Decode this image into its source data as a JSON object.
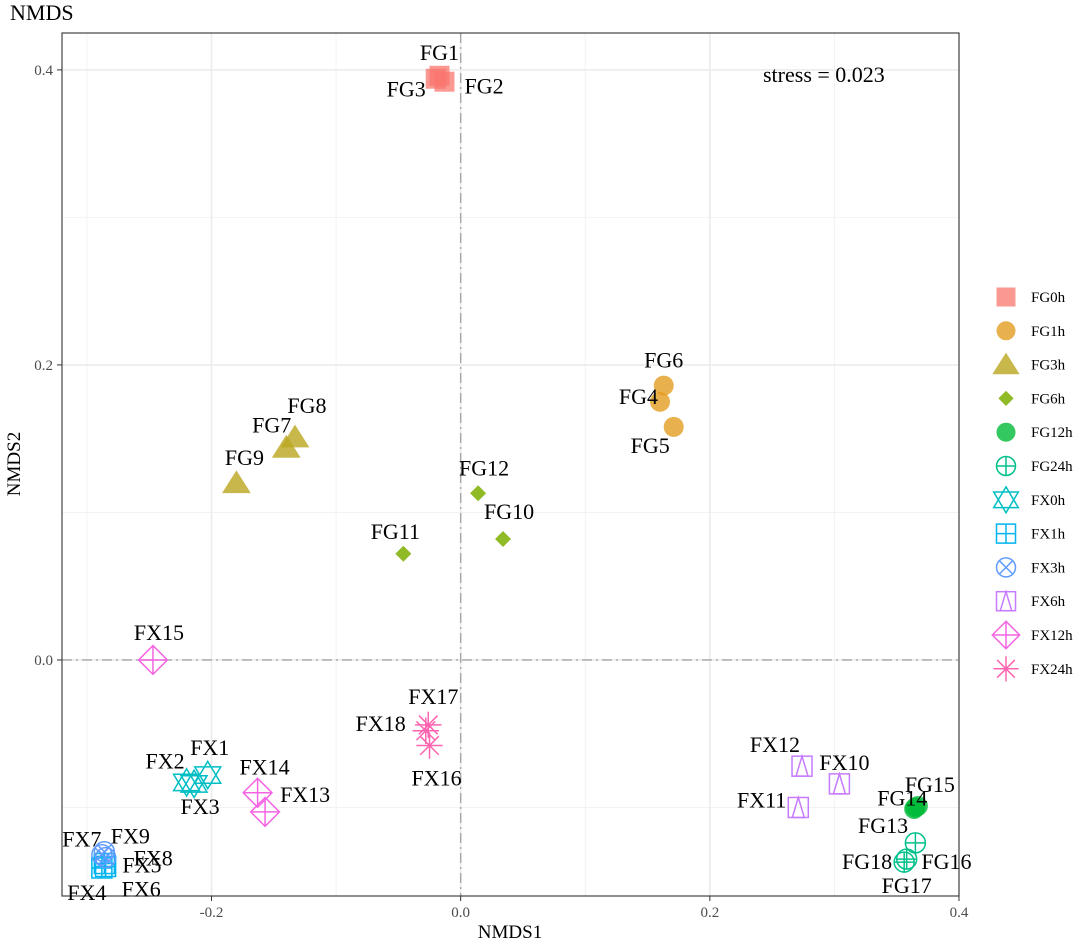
{
  "chart_data": {
    "type": "scatter",
    "title": "NMDS",
    "xlabel": "NMDS1",
    "ylabel": "NMDS2",
    "xlim": [
      -0.32,
      0.4
    ],
    "ylim": [
      -0.16,
      0.425
    ],
    "x_ticks": [
      {
        "value": -0.2,
        "label": "-0.2"
      },
      {
        "value": 0.0,
        "label": "0.0"
      },
      {
        "value": 0.2,
        "label": "0.2"
      },
      {
        "value": 0.4,
        "label": "0.4"
      }
    ],
    "y_ticks": [
      {
        "value": 0.0,
        "label": "0.0"
      },
      {
        "value": 0.2,
        "label": "0.2"
      },
      {
        "value": 0.4,
        "label": "0.4"
      }
    ],
    "annotation": "stress = 0.023",
    "grid": true,
    "legend_position": "right",
    "series": [
      {
        "name": "FG0h",
        "color": "#F8766D",
        "shape": "square",
        "points": [
          {
            "label": "FG1",
            "x": -0.017,
            "y": 0.396
          },
          {
            "label": "FG2",
            "x": -0.013,
            "y": 0.392
          },
          {
            "label": "FG3",
            "x": -0.02,
            "y": 0.394
          }
        ]
      },
      {
        "name": "FG1h",
        "color": "#E39E21",
        "shape": "circle",
        "points": [
          {
            "label": "FG6",
            "x": 0.163,
            "y": 0.186
          },
          {
            "label": "FG4",
            "x": 0.16,
            "y": 0.175
          },
          {
            "label": "FG5",
            "x": 0.171,
            "y": 0.158
          }
        ]
      },
      {
        "name": "FG3h",
        "color": "#BAA61F",
        "shape": "triangle",
        "points": [
          {
            "label": "FG8",
            "x": -0.133,
            "y": 0.151
          },
          {
            "label": "FG7",
            "x": -0.14,
            "y": 0.144
          },
          {
            "label": "FG9",
            "x": -0.18,
            "y": 0.12
          }
        ]
      },
      {
        "name": "FG6h",
        "color": "#7CAE00",
        "shape": "diamond",
        "points": [
          {
            "label": "FG12",
            "x": 0.014,
            "y": 0.113
          },
          {
            "label": "FG10",
            "x": 0.034,
            "y": 0.082
          },
          {
            "label": "FG11",
            "x": -0.046,
            "y": 0.072
          }
        ]
      },
      {
        "name": "FG12h",
        "color": "#00BA38",
        "shape": "circle",
        "points": [
          {
            "label": "FG15",
            "x": 0.367,
            "y": -0.099
          },
          {
            "label": "FG14",
            "x": 0.365,
            "y": -0.1
          },
          {
            "label": "FG13",
            "x": 0.364,
            "y": -0.101
          }
        ]
      },
      {
        "name": "FG24h",
        "color": "#00C08B",
        "shape": "circleplus",
        "points": [
          {
            "label": "FG16",
            "x": 0.365,
            "y": -0.124
          },
          {
            "label": "FG18",
            "x": 0.356,
            "y": -0.137
          },
          {
            "label": "FG17",
            "x": 0.358,
            "y": -0.135
          }
        ]
      },
      {
        "name": "FX0h",
        "color": "#00BFC4",
        "shape": "star6",
        "points": [
          {
            "label": "FX1",
            "x": -0.203,
            "y": -0.078
          },
          {
            "label": "FX2",
            "x": -0.22,
            "y": -0.083
          },
          {
            "label": "FX3",
            "x": -0.214,
            "y": -0.084
          }
        ]
      },
      {
        "name": "FX1h",
        "color": "#00B4EF",
        "shape": "squareplus",
        "points": [
          {
            "label": "FX5",
            "x": -0.286,
            "y": -0.138
          },
          {
            "label": "FX4",
            "x": -0.288,
            "y": -0.141
          },
          {
            "label": "FX6",
            "x": -0.285,
            "y": -0.14
          }
        ]
      },
      {
        "name": "FX3h",
        "color": "#619CFF",
        "shape": "circlecross",
        "points": [
          {
            "label": "FX7",
            "x": -0.288,
            "y": -0.132
          },
          {
            "label": "FX9",
            "x": -0.286,
            "y": -0.13
          },
          {
            "label": "FX8",
            "x": -0.285,
            "y": -0.134
          }
        ]
      },
      {
        "name": "FX6h",
        "color": "#C77CFF",
        "shape": "squaretriangle",
        "points": [
          {
            "label": "FX12",
            "x": 0.274,
            "y": -0.072
          },
          {
            "label": "FX10",
            "x": 0.304,
            "y": -0.084
          },
          {
            "label": "FX11",
            "x": 0.271,
            "y": -0.1
          }
        ]
      },
      {
        "name": "FX12h",
        "color": "#F564E3",
        "shape": "diamondplus",
        "points": [
          {
            "label": "FX15",
            "x": -0.247,
            "y": 0.0
          },
          {
            "label": "FX14",
            "x": -0.163,
            "y": -0.09
          },
          {
            "label": "FX13",
            "x": -0.157,
            "y": -0.103
          }
        ]
      },
      {
        "name": "FX24h",
        "color": "#FF64B0",
        "shape": "asterisk",
        "points": [
          {
            "label": "FX17",
            "x": -0.026,
            "y": -0.044
          },
          {
            "label": "FX18",
            "x": -0.028,
            "y": -0.048
          },
          {
            "label": "FX16",
            "x": -0.025,
            "y": -0.058
          }
        ]
      }
    ]
  }
}
